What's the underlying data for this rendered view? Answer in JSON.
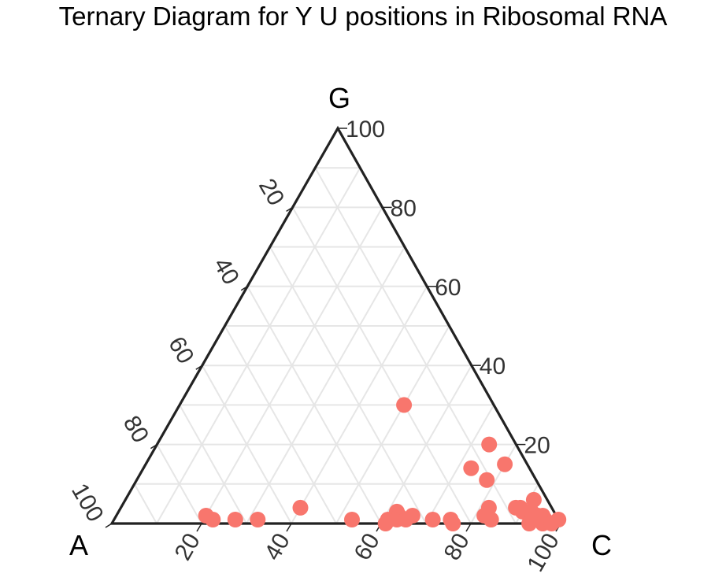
{
  "title": "Ternary Diagram for Y U positions in  Ribosomal RNA",
  "chart_data": {
    "type": "scatter",
    "subtype": "ternary",
    "title": "Ternary Diagram for Y U positions in  Ribosomal RNA",
    "axes": {
      "top": "G",
      "left": "A",
      "right": "C"
    },
    "ticks": [
      20,
      40,
      60,
      80,
      100
    ],
    "range": [
      0,
      100
    ],
    "grid": true,
    "point_color": "#F8766D",
    "points": [
      {
        "G": 30,
        "C": 50,
        "A": 20
      },
      {
        "G": 20,
        "C": 74,
        "A": 6
      },
      {
        "G": 15,
        "C": 80,
        "A": 5
      },
      {
        "G": 14,
        "C": 73,
        "A": 13
      },
      {
        "G": 11,
        "C": 78,
        "A": 11
      },
      {
        "G": 6,
        "C": 91,
        "A": 3
      },
      {
        "G": 4,
        "C": 82,
        "A": 14
      },
      {
        "G": 4,
        "C": 40,
        "A": 56
      },
      {
        "G": 4,
        "C": 88,
        "A": 8
      },
      {
        "G": 4,
        "C": 89,
        "A": 7
      },
      {
        "G": 3,
        "C": 62,
        "A": 35
      },
      {
        "G": 3,
        "C": 90,
        "A": 7
      },
      {
        "G": 3,
        "C": 92,
        "A": 5
      },
      {
        "G": 2,
        "C": 20,
        "A": 78
      },
      {
        "G": 2,
        "C": 63,
        "A": 35
      },
      {
        "G": 2,
        "C": 66,
        "A": 32
      },
      {
        "G": 2,
        "C": 82,
        "A": 16
      },
      {
        "G": 2,
        "C": 94,
        "A": 4
      },
      {
        "G": 2,
        "C": 95,
        "A": 3
      },
      {
        "G": 1,
        "C": 22,
        "A": 77
      },
      {
        "G": 1,
        "C": 27,
        "A": 72
      },
      {
        "G": 1,
        "C": 32,
        "A": 67
      },
      {
        "G": 1,
        "C": 53,
        "A": 46
      },
      {
        "G": 1,
        "C": 61,
        "A": 38
      },
      {
        "G": 1,
        "C": 63,
        "A": 36
      },
      {
        "G": 1,
        "C": 65,
        "A": 34
      },
      {
        "G": 1,
        "C": 71,
        "A": 28
      },
      {
        "G": 1,
        "C": 75,
        "A": 24
      },
      {
        "G": 1,
        "C": 84,
        "A": 15
      },
      {
        "G": 1,
        "C": 93,
        "A": 6
      },
      {
        "G": 1,
        "C": 96,
        "A": 3
      },
      {
        "G": 1,
        "C": 99,
        "A": 0
      },
      {
        "G": 0,
        "C": 61,
        "A": 39
      },
      {
        "G": 0,
        "C": 76,
        "A": 24
      },
      {
        "G": 0,
        "C": 93,
        "A": 7
      },
      {
        "G": 0,
        "C": 96,
        "A": 4
      },
      {
        "G": 0,
        "C": 98,
        "A": 2
      }
    ]
  }
}
